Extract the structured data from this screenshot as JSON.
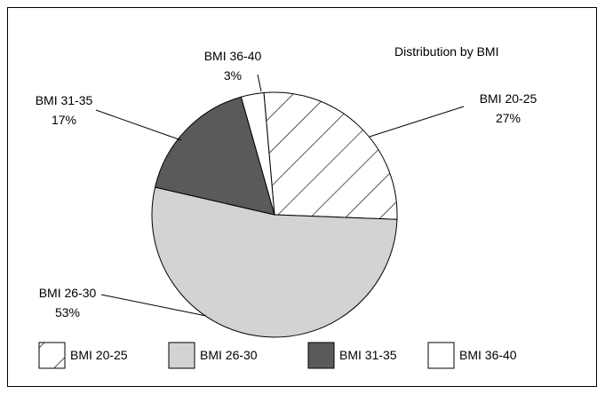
{
  "chart_data": {
    "type": "pie",
    "title": "Distribution by BMI",
    "legend_position": "bottom",
    "slices": [
      {
        "label": "BMI 20-25",
        "value": 27,
        "value_label": "27%",
        "fill": "hatch",
        "color": "#ffffff"
      },
      {
        "label": "BMI 26-30",
        "value": 53,
        "value_label": "53%",
        "fill": "solid",
        "color": "#d3d3d3"
      },
      {
        "label": "BMI 31-35",
        "value": 17,
        "value_label": "17%",
        "fill": "solid",
        "color": "#5a5a5a"
      },
      {
        "label": "BMI 36-40",
        "value": 3,
        "value_label": "3%",
        "fill": "solid",
        "color": "#ffffff"
      }
    ]
  }
}
